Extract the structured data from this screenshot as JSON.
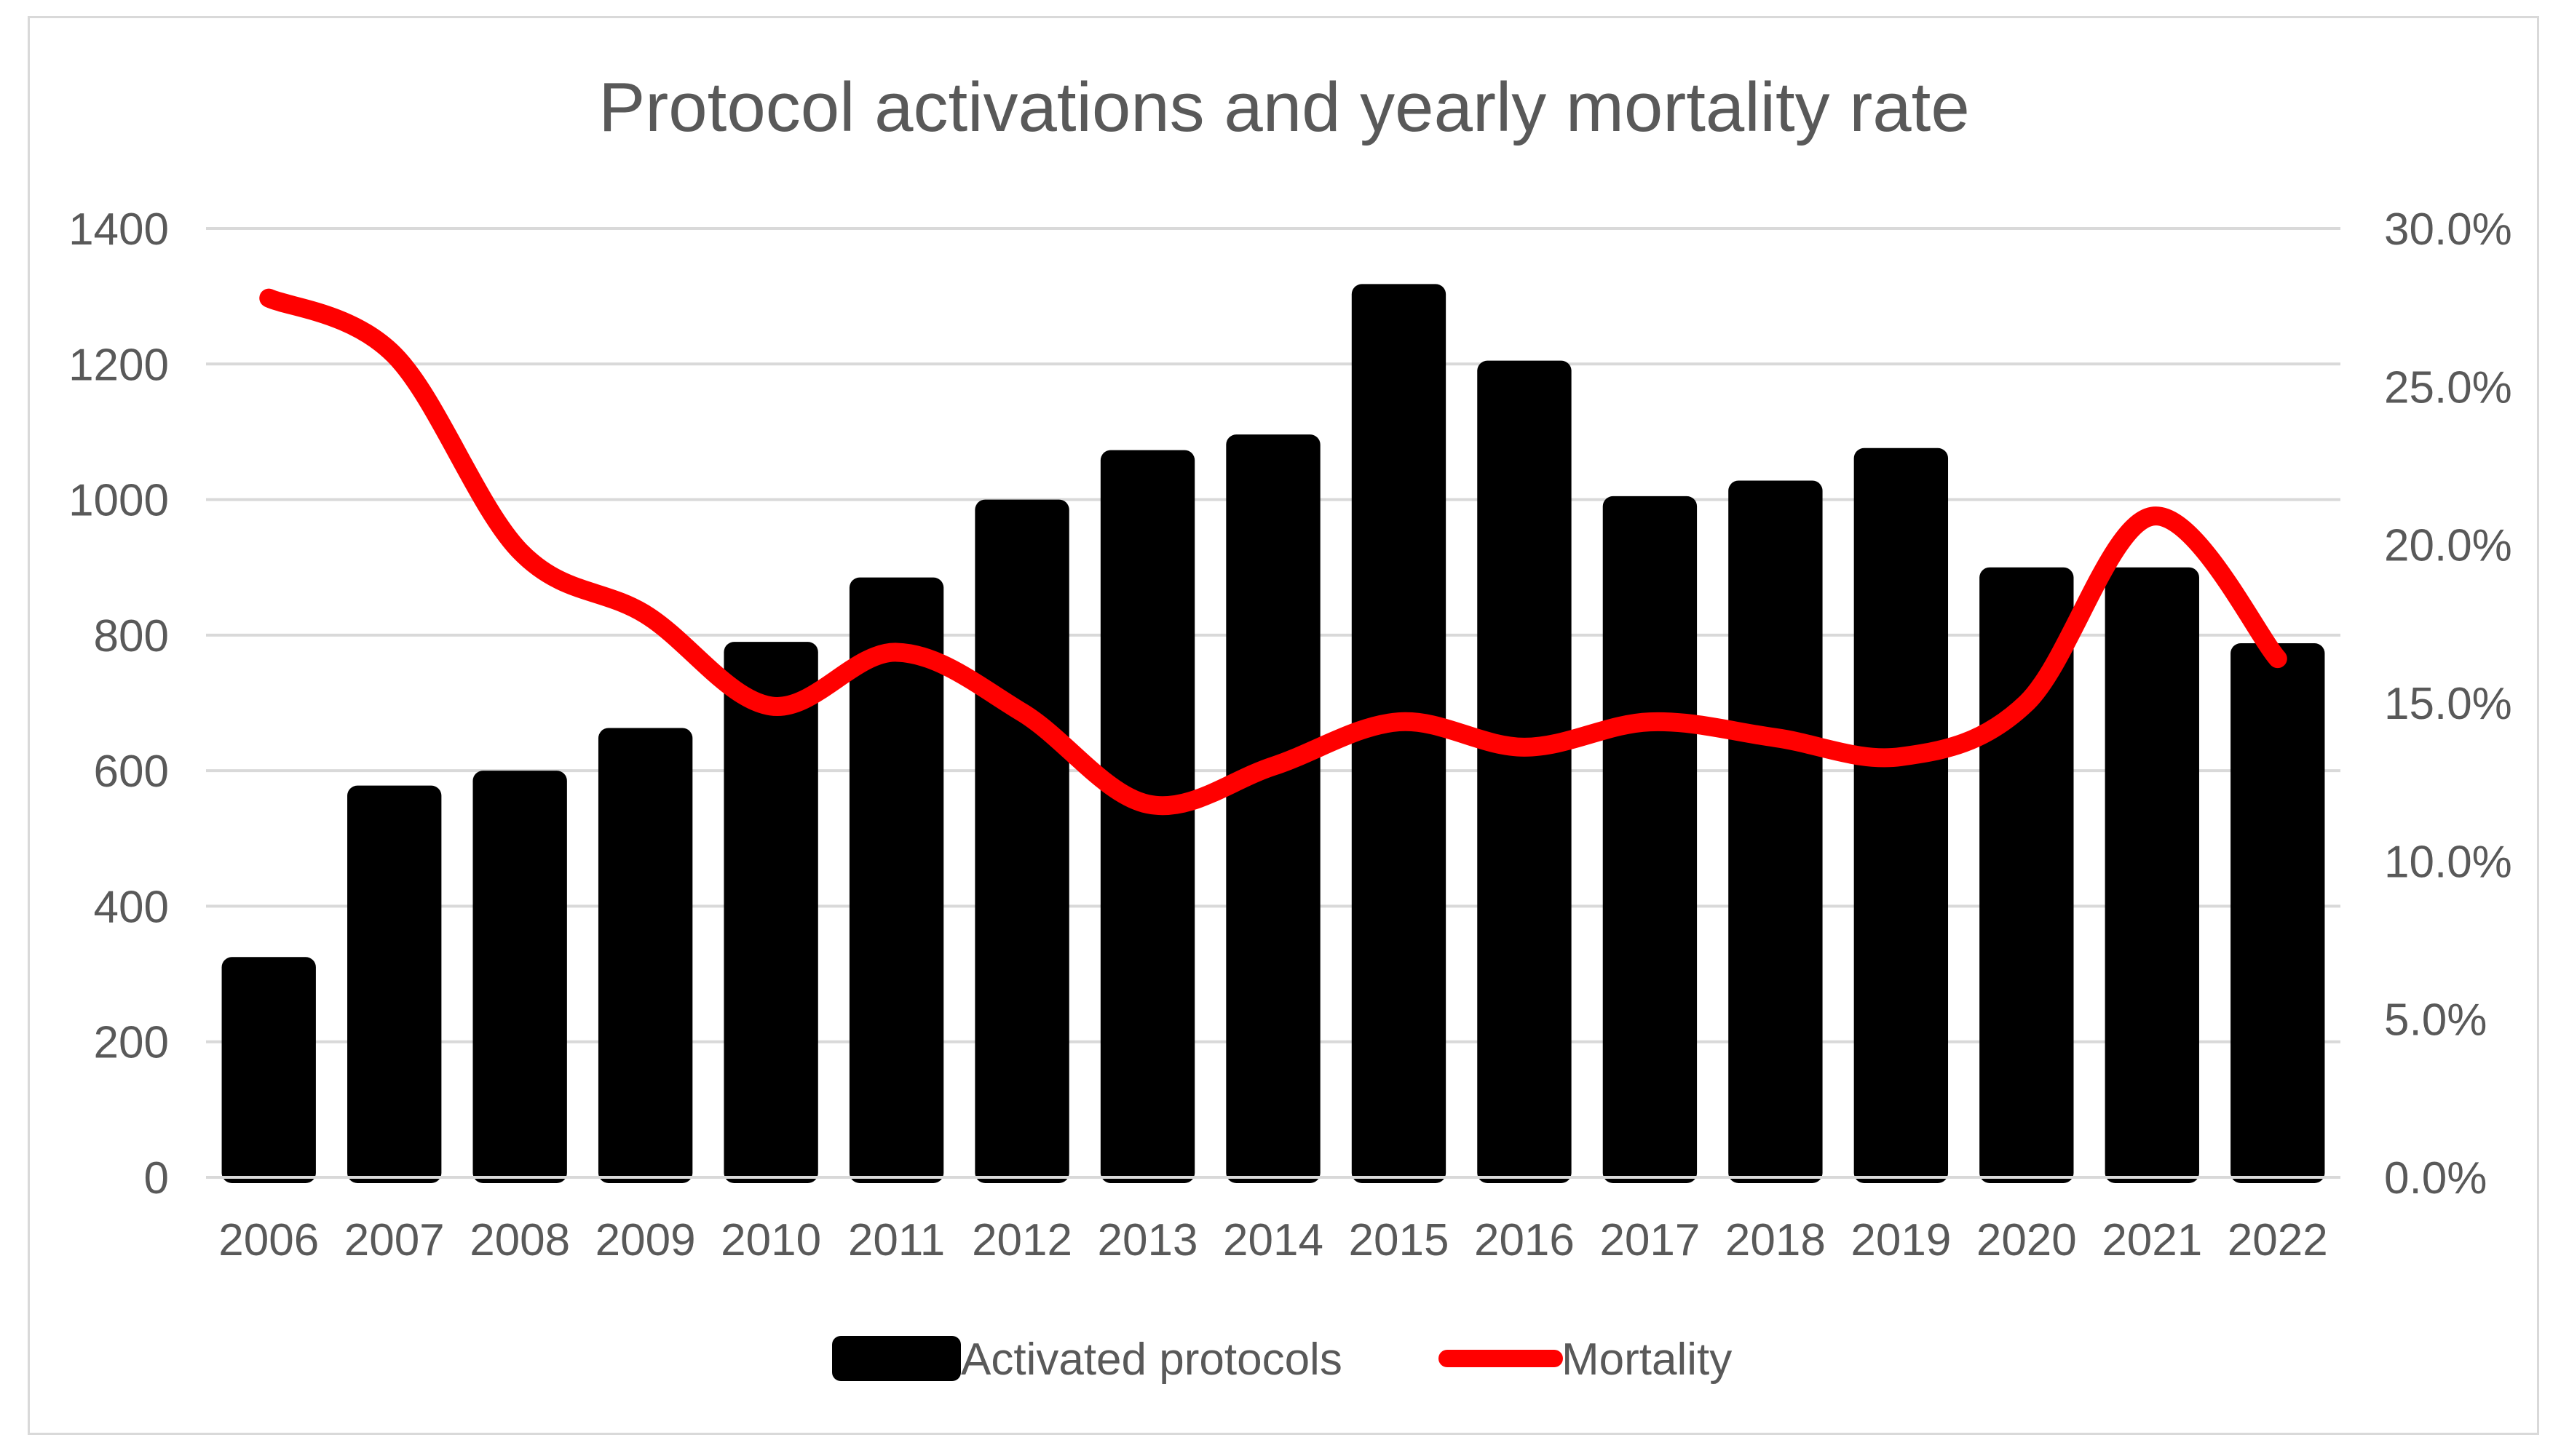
{
  "chart_data": {
    "type": "bar",
    "title": "Protocol activations and yearly mortality rate",
    "categories": [
      "2006",
      "2007",
      "2008",
      "2009",
      "2010",
      "2011",
      "2012",
      "2013",
      "2014",
      "2015",
      "2016",
      "2017",
      "2018",
      "2019",
      "2020",
      "2021",
      "2022"
    ],
    "series": [
      {
        "name": "Activated protocols",
        "type": "bar",
        "axis": "left",
        "color": "#000000",
        "values": [
          325,
          578,
          600,
          663,
          790,
          885,
          1000,
          1073,
          1096,
          1318,
          1205,
          1005,
          1028,
          1076,
          900,
          900,
          788
        ]
      },
      {
        "name": "Mortality",
        "type": "line",
        "axis": "right",
        "color": "#ff0000",
        "values": [
          27.8,
          26.0,
          19.8,
          17.8,
          14.9,
          16.6,
          14.7,
          11.8,
          13.0,
          14.4,
          13.6,
          14.4,
          13.9,
          13.3,
          15.0,
          20.9,
          16.4
        ]
      }
    ],
    "y_left": {
      "ylim": [
        0,
        1400
      ],
      "ticks": [
        "0",
        "200",
        "400",
        "600",
        "800",
        "1000",
        "1200",
        "1400"
      ]
    },
    "y_right": {
      "ylim": [
        0,
        30
      ],
      "ticks": [
        "0.0%",
        "5.0%",
        "10.0%",
        "15.0%",
        "20.0%",
        "25.0%",
        "30.0%"
      ]
    },
    "grid": true,
    "legend": "bottom",
    "legend_labels": [
      "Activated protocols",
      "Mortality"
    ]
  }
}
